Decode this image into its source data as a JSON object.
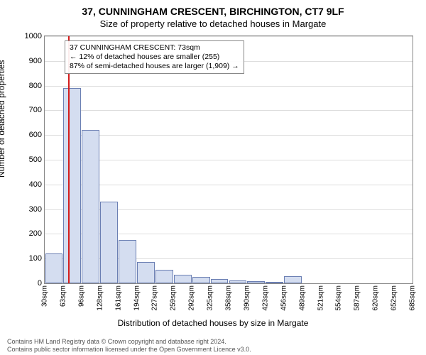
{
  "chart": {
    "type": "histogram",
    "title_main": "37, CUNNINGHAM CRESCENT, BIRCHINGTON, CT7 9LF",
    "title_sub": "Size of property relative to detached houses in Margate",
    "ylabel": "Number of detached properties",
    "xlabel": "Distribution of detached houses by size in Margate",
    "title_fontsize": 14,
    "subtitle_fontsize": 13,
    "label_fontsize": 12,
    "tick_fontsize": 11,
    "background_color": "#ffffff",
    "plot_border_color": "#888888",
    "grid_color": "#dddddd",
    "bar_fill": "#d4ddf0",
    "bar_border": "#6b7fb3",
    "marker_color": "#d41c1c",
    "marker_position_sqm": 73,
    "ylim": [
      0,
      1000
    ],
    "ytick_step": 100,
    "xlim_sqm": [
      30,
      700
    ],
    "xtick_start": 30,
    "xtick_step_approx": 33,
    "xticks": [
      "30sqm",
      "63sqm",
      "96sqm",
      "128sqm",
      "161sqm",
      "194sqm",
      "227sqm",
      "259sqm",
      "292sqm",
      "325sqm",
      "358sqm",
      "390sqm",
      "423sqm",
      "456sqm",
      "489sqm",
      "521sqm",
      "554sqm",
      "587sqm",
      "620sqm",
      "652sqm",
      "685sqm"
    ],
    "bars": [
      {
        "x_sqm": 40,
        "value": 120
      },
      {
        "x_sqm": 73,
        "value": 790
      },
      {
        "x_sqm": 106,
        "value": 620
      },
      {
        "x_sqm": 139,
        "value": 330
      },
      {
        "x_sqm": 172,
        "value": 175
      },
      {
        "x_sqm": 205,
        "value": 85
      },
      {
        "x_sqm": 238,
        "value": 55
      },
      {
        "x_sqm": 271,
        "value": 35
      },
      {
        "x_sqm": 304,
        "value": 25
      },
      {
        "x_sqm": 337,
        "value": 18
      },
      {
        "x_sqm": 370,
        "value": 12
      },
      {
        "x_sqm": 403,
        "value": 9
      },
      {
        "x_sqm": 436,
        "value": 6
      },
      {
        "x_sqm": 469,
        "value": 30
      },
      {
        "x_sqm": 502,
        "value": 0
      },
      {
        "x_sqm": 535,
        "value": 0
      },
      {
        "x_sqm": 568,
        "value": 0
      },
      {
        "x_sqm": 601,
        "value": 0
      },
      {
        "x_sqm": 634,
        "value": 0
      },
      {
        "x_sqm": 667,
        "value": 0
      }
    ],
    "infobox": {
      "line1": "37 CUNNINGHAM CRESCENT: 73sqm",
      "line2": "← 12% of detached houses are smaller (255)",
      "line3": "87% of semi-detached houses are larger (1,909) →"
    }
  },
  "footer": {
    "line1": "Contains HM Land Registry data © Crown copyright and database right 2024.",
    "line2": "Contains public sector information licensed under the Open Government Licence v3.0."
  }
}
